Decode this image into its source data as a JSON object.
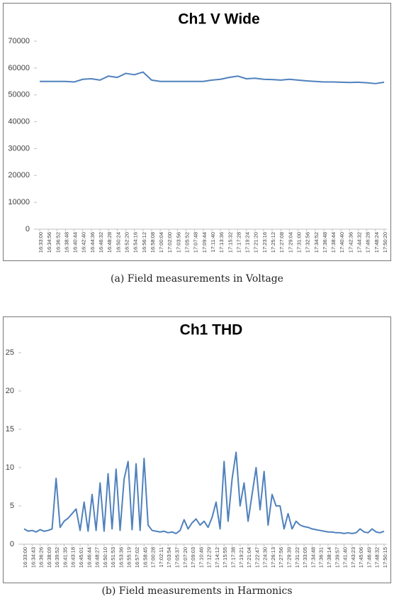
{
  "chart_data": [
    {
      "type": "line",
      "title": "Ch1 V Wide",
      "caption": "(a) Field measurements in Voltage",
      "categories": [
        "16:33:00",
        "16:34:56",
        "16:36:52",
        "16:38:48",
        "16:40:44",
        "16:42:40",
        "16:44:36",
        "16:46:32",
        "16:48:28",
        "16:50:24",
        "16:52:20",
        "16:54:16",
        "16:56:12",
        "16:58:08",
        "17:00:04",
        "17:02:00",
        "17:03:56",
        "17:05:52",
        "17:07:48",
        "17:09:44",
        "17:11:40",
        "17:13:36",
        "17:15:32",
        "17:17:28",
        "17:19:24",
        "17:21:20",
        "17:23:16",
        "17:25:12",
        "17:27:08",
        "17:29:04",
        "17:31:00",
        "17:32:56",
        "17:34:52",
        "17:36:48",
        "17:38:44",
        "17:40:40",
        "17:42:36",
        "17:44:32",
        "17:46:28",
        "17:48:24",
        "17:50:20"
      ],
      "values": [
        55000,
        55000,
        55000,
        55000,
        54800,
        55800,
        56000,
        55500,
        57000,
        56500,
        58000,
        57500,
        58500,
        55500,
        55000,
        55000,
        55000,
        55000,
        55000,
        55000,
        55500,
        55800,
        56500,
        57000,
        56000,
        56200,
        55800,
        55700,
        55500,
        55800,
        55500,
        55200,
        55000,
        54800,
        54800,
        54700,
        54600,
        54700,
        54500,
        54200,
        54700
      ],
      "color": "#4f81bd",
      "ylim": [
        0,
        70000
      ],
      "yticks": [
        0,
        10000,
        20000,
        30000,
        40000,
        50000,
        60000,
        70000
      ],
      "grid": false
    },
    {
      "type": "line",
      "title": "Ch1 THD",
      "caption": "(b) Field measurements in Harmonics",
      "categories": [
        "16:33:00",
        null,
        "16:34:43",
        null,
        "16:36:26",
        null,
        "16:38:09",
        null,
        "16:39:52",
        null,
        "16:41:35",
        null,
        "16:43:18",
        null,
        "16:45:01",
        null,
        "16:46:44",
        null,
        "16:48:27",
        null,
        "16:50:10",
        null,
        "16:51:53",
        null,
        "16:53:36",
        null,
        "16:55:19",
        null,
        "16:57:02",
        null,
        "16:58:45",
        null,
        "17:00:28",
        null,
        "17:02:11",
        null,
        "17:03:54",
        null,
        "17:05:37",
        null,
        "17:07:20",
        null,
        "17:09:03",
        null,
        "17:10:46",
        null,
        "17:12:29",
        null,
        "17:14:12",
        null,
        "17:15:55",
        null,
        "17:17:38",
        null,
        "17:19:21",
        null,
        "17:21:04",
        null,
        "17:22:47",
        null,
        "17:24:30",
        null,
        "17:26:13",
        null,
        "17:27:56",
        null,
        "17:29:39",
        null,
        "17:31:22",
        null,
        "17:33:05",
        null,
        "17:34:48",
        null,
        "17:36:31",
        null,
        "17:38:14",
        null,
        "17:39:57",
        null,
        "17:41:40",
        null,
        "17:43:23",
        null,
        "17:45:06",
        null,
        "17:46:49",
        null,
        "17:48:32",
        null,
        "17:50:15"
      ],
      "values": [
        2.0,
        1.7,
        1.8,
        1.6,
        1.9,
        1.7,
        1.8,
        2.0,
        8.6,
        2.2,
        3.0,
        3.4,
        4.0,
        4.6,
        1.8,
        5.5,
        1.7,
        6.5,
        1.8,
        8.0,
        1.7,
        9.2,
        2.0,
        9.8,
        1.8,
        8.5,
        10.8,
        1.9,
        10.5,
        1.8,
        11.2,
        2.5,
        1.8,
        1.7,
        1.6,
        1.7,
        1.5,
        1.6,
        1.4,
        1.8,
        3.2,
        2.0,
        2.8,
        3.3,
        2.5,
        3.0,
        2.2,
        3.5,
        5.5,
        2.0,
        10.8,
        3.0,
        8.5,
        12.0,
        5.0,
        8.0,
        3.0,
        6.5,
        10.0,
        4.5,
        9.5,
        2.5,
        6.5,
        5.0,
        5.0,
        2.0,
        4.0,
        2.0,
        3.0,
        2.5,
        2.3,
        2.2,
        2.0,
        1.9,
        1.8,
        1.7,
        1.6,
        1.6,
        1.5,
        1.5,
        1.4,
        1.5,
        1.4,
        1.5,
        2.0,
        1.6,
        1.5,
        2.0,
        1.6,
        1.5,
        1.7
      ],
      "color": "#4f81bd",
      "ylim": [
        0,
        25
      ],
      "yticks": [
        0,
        5,
        10,
        15,
        20,
        25
      ],
      "grid": false
    }
  ]
}
